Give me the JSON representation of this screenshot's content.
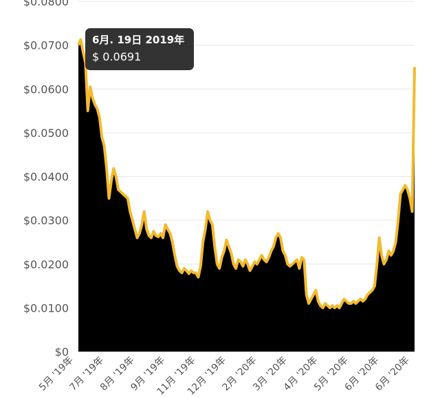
{
  "chart_data": {
    "type": "area",
    "colors": {
      "line": "#F3BA2F",
      "fill": "#000000",
      "grid": "#e6e6e6"
    },
    "ylim": [
      0,
      0.08
    ],
    "y_ticks": [
      "$0",
      "$0.0100",
      "$0.0200",
      "$0.0300",
      "$0.0400",
      "$0.0500",
      "$0.0600",
      "$0.0700",
      "$0.0800"
    ],
    "x_ticks": [
      "5月 '19年",
      "7月 '19年",
      "8月 '19年",
      "9月 '19年",
      "11月 '19年",
      "12月 '19年",
      "2月 '20年",
      "3月 '20年",
      "4月 '20年",
      "5月 '20年",
      "6月 '20年",
      "6月 '20年"
    ],
    "tooltip": {
      "date": "6月. 19日 2019年",
      "value": "$ 0.0691"
    },
    "series": [
      {
        "values": [
          0.07,
          0.0713,
          0.0685,
          0.066,
          0.055,
          0.0605,
          0.058,
          0.0565,
          0.0555,
          0.0535,
          0.049,
          0.047,
          0.042,
          0.035,
          0.039,
          0.0418,
          0.04,
          0.037,
          0.0365,
          0.036,
          0.0355,
          0.035,
          0.032,
          0.03,
          0.028,
          0.026,
          0.027,
          0.029,
          0.032,
          0.028,
          0.0265,
          0.026,
          0.0275,
          0.0265,
          0.0262,
          0.027,
          0.026,
          0.029,
          0.028,
          0.027,
          0.025,
          0.022,
          0.0195,
          0.0185,
          0.018,
          0.019,
          0.0185,
          0.0178,
          0.0185,
          0.018,
          0.018,
          0.017,
          0.0195,
          0.025,
          0.028,
          0.032,
          0.03,
          0.029,
          0.024,
          0.02,
          0.019,
          0.0215,
          0.023,
          0.0255,
          0.024,
          0.0225,
          0.02,
          0.019,
          0.021,
          0.0205,
          0.0195,
          0.021,
          0.02,
          0.0185,
          0.0195,
          0.0205,
          0.02,
          0.021,
          0.022,
          0.021,
          0.0205,
          0.0215,
          0.023,
          0.024,
          0.026,
          0.027,
          0.026,
          0.023,
          0.022,
          0.02,
          0.0195,
          0.02,
          0.0205,
          0.021,
          0.019,
          0.0215,
          0.021,
          0.013,
          0.011,
          0.012,
          0.013,
          0.014,
          0.0115,
          0.0105,
          0.01,
          0.011,
          0.0105,
          0.01,
          0.0105,
          0.01,
          0.0105,
          0.01,
          0.011,
          0.012,
          0.0115,
          0.011,
          0.011,
          0.0115,
          0.011,
          0.0115,
          0.012,
          0.0115,
          0.012,
          0.013,
          0.0135,
          0.014,
          0.015,
          0.02,
          0.026,
          0.022,
          0.02,
          0.021,
          0.023,
          0.022,
          0.023,
          0.025,
          0.03,
          0.036,
          0.037,
          0.038,
          0.037,
          0.035,
          0.032,
          0.065
        ]
      }
    ],
    "grid": true
  }
}
